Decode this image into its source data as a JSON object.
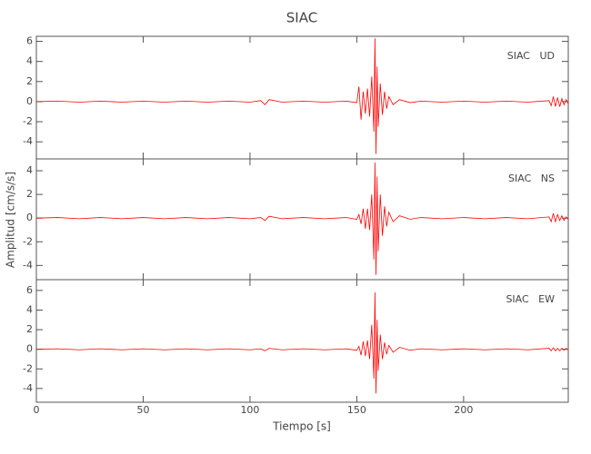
{
  "chart_data": {
    "type": "line",
    "title": "SIAC",
    "xlabel": "Tiempo [s]",
    "ylabel": "Amplitud [cm/s/s]",
    "xlim": [
      0,
      249
    ],
    "xticks": [
      0,
      50,
      100,
      150,
      200
    ],
    "x": [
      0,
      10,
      20,
      30,
      40,
      50,
      60,
      70,
      80,
      90,
      100,
      105,
      107,
      109,
      115,
      125,
      135,
      145,
      150,
      151,
      152,
      153,
      154,
      155,
      156,
      157,
      158,
      158.5,
      159,
      159.5,
      160,
      161,
      162,
      163,
      164,
      165,
      167,
      170,
      175,
      180,
      190,
      200,
      210,
      220,
      230,
      240,
      241,
      242,
      243,
      244,
      245,
      246,
      247,
      248,
      249
    ],
    "panels": [
      {
        "label": "SIAC   UD",
        "ylim": [
          -5.7,
          6.5
        ],
        "yticks": [
          -4,
          -2,
          0,
          2,
          4,
          6
        ],
        "color": "#ff0000",
        "values": [
          0,
          0.05,
          -0.05,
          0.05,
          -0.05,
          0.05,
          -0.05,
          0.05,
          -0.05,
          0.05,
          -0.05,
          0.1,
          -0.3,
          0.2,
          -0.05,
          0.05,
          -0.05,
          0.05,
          -0.1,
          1.5,
          -1.8,
          1.0,
          -1.2,
          1.3,
          -1.5,
          2.5,
          -3.0,
          6.3,
          -5.2,
          3.5,
          -2.5,
          1.8,
          -1.3,
          1.0,
          -0.7,
          0.5,
          -0.3,
          0.2,
          -0.1,
          0.05,
          -0.05,
          0.05,
          -0.05,
          0.05,
          -0.05,
          0.1,
          -0.4,
          0.5,
          -0.5,
          0.4,
          -0.5,
          0.3,
          -0.3,
          0.2,
          -0.2
        ]
      },
      {
        "label": "SIAC   NS",
        "ylim": [
          -5.2,
          5
        ],
        "yticks": [
          -4,
          -2,
          0,
          2,
          4
        ],
        "color": "#ff0000",
        "values": [
          0,
          0.05,
          -0.05,
          0.05,
          -0.05,
          0.05,
          -0.05,
          0.05,
          -0.05,
          0.05,
          -0.05,
          0.05,
          -0.2,
          0.15,
          -0.05,
          0.05,
          -0.05,
          0.05,
          -0.1,
          0.3,
          -0.5,
          0.8,
          -0.9,
          0.8,
          -1.0,
          2.0,
          -3.5,
          4.7,
          -4.8,
          3.5,
          -2.8,
          2.0,
          -1.5,
          1.0,
          -0.7,
          0.5,
          -0.3,
          0.2,
          -0.1,
          0.05,
          -0.05,
          0.05,
          -0.05,
          0.05,
          -0.05,
          0.1,
          -0.3,
          0.4,
          -0.3,
          0.3,
          -0.2,
          0.2,
          -0.2,
          0.1,
          -0.1
        ]
      },
      {
        "label": "SIAC   EW",
        "ylim": [
          -5.4,
          7.1
        ],
        "yticks": [
          -4,
          -2,
          0,
          2,
          4,
          6
        ],
        "color": "#ff0000",
        "values": [
          0,
          0.05,
          -0.05,
          0.05,
          -0.05,
          0.05,
          -0.05,
          0.05,
          -0.05,
          0.05,
          -0.05,
          0.05,
          -0.15,
          0.1,
          -0.05,
          0.05,
          -0.05,
          0.05,
          -0.1,
          0.3,
          -0.6,
          0.8,
          -0.7,
          0.9,
          -1.0,
          2.5,
          -3.0,
          5.8,
          -4.5,
          3.0,
          -2.2,
          1.5,
          -1.0,
          0.7,
          -0.5,
          0.4,
          -0.3,
          0.2,
          -0.1,
          0.05,
          -0.05,
          0.05,
          -0.05,
          0.05,
          -0.05,
          0.1,
          -0.15,
          0.15,
          -0.15,
          0.1,
          -0.15,
          0.1,
          -0.1,
          0.1,
          -0.05
        ]
      }
    ]
  }
}
